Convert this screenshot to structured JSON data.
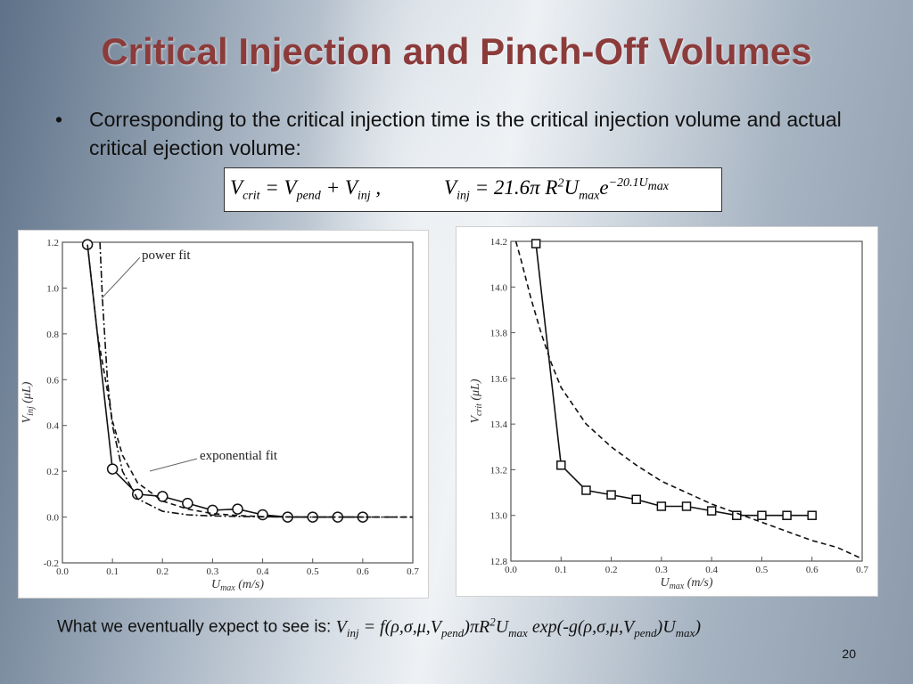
{
  "slide": {
    "title": "Critical Injection and Pinch-Off Volumes",
    "bullet": "Corresponding to the critical injection time is the critical injection volume and actual critical ejection volume:",
    "bottom_prefix": "What we eventually expect to see is:",
    "page_number": "20"
  },
  "equation": {
    "part1": "V_crit = V_pend + V_inj ,",
    "part2": "V_inj = 21.6π R²U_max e^(−20.1U_max)"
  },
  "bottom_formula": "V_inj = f(ρ,σ,μ,V_pend)πR²U_max exp(-g(ρ,σ,μ,V_pend)U_max)",
  "chart_data": [
    {
      "type": "line",
      "xlabel": "U_max (m/s)",
      "ylabel": "V_inj (μL)",
      "xlim": [
        0.0,
        0.7
      ],
      "ylim": [
        -0.2,
        1.2
      ],
      "xticks": [
        "0.0",
        "0.1",
        "0.2",
        "0.3",
        "0.4",
        "0.5",
        "0.6",
        "0.7"
      ],
      "yticks": [
        "-0.2",
        "0.0",
        "0.2",
        "0.4",
        "0.6",
        "0.8",
        "1.0",
        "1.2"
      ],
      "annotations": [
        "power fit",
        "exponential fit"
      ],
      "series": [
        {
          "style": "solid-circle-markers",
          "x": [
            0.05,
            0.1,
            0.15,
            0.2,
            0.25,
            0.3,
            0.35,
            0.4,
            0.45,
            0.5,
            0.55,
            0.6
          ],
          "y": [
            1.19,
            0.21,
            0.1,
            0.09,
            0.06,
            0.03,
            0.035,
            0.01,
            0.0,
            0.0,
            0.0,
            0.0
          ]
        },
        {
          "name": "power fit",
          "style": "dash-dot",
          "x": [
            0.075,
            0.08,
            0.09,
            0.1,
            0.12,
            0.15,
            0.2,
            0.25,
            0.3,
            0.4,
            0.5,
            0.6,
            0.7
          ],
          "y": [
            1.2,
            0.95,
            0.6,
            0.4,
            0.2,
            0.08,
            0.025,
            0.01,
            0.005,
            0.001,
            0.0,
            0.0,
            0.0
          ]
        },
        {
          "name": "exponential fit",
          "style": "dashed",
          "x": [
            0.05,
            0.07,
            0.09,
            0.1,
            0.12,
            0.15,
            0.2,
            0.25,
            0.3,
            0.35,
            0.4,
            0.5,
            0.6,
            0.7
          ],
          "y": [
            1.19,
            0.8,
            0.55,
            0.42,
            0.27,
            0.15,
            0.07,
            0.035,
            0.015,
            0.007,
            0.002,
            0.0,
            0.0,
            0.0
          ]
        }
      ]
    },
    {
      "type": "line",
      "xlabel": "U_max (m/s)",
      "ylabel": "V_crit (μL)",
      "xlim": [
        0.0,
        0.7
      ],
      "ylim": [
        12.8,
        14.2
      ],
      "xticks": [
        "0.0",
        "0.1",
        "0.2",
        "0.3",
        "0.4",
        "0.5",
        "0.6",
        "0.7"
      ],
      "yticks": [
        "12.8",
        "13.0",
        "13.2",
        "13.4",
        "13.6",
        "13.8",
        "14.0",
        "14.2"
      ],
      "series": [
        {
          "style": "solid-square-markers",
          "x": [
            0.05,
            0.1,
            0.15,
            0.2,
            0.25,
            0.3,
            0.35,
            0.4,
            0.45,
            0.5,
            0.55,
            0.6
          ],
          "y": [
            14.19,
            13.22,
            13.11,
            13.09,
            13.07,
            13.04,
            13.04,
            13.02,
            13.0,
            13.0,
            13.0,
            13.0
          ]
        },
        {
          "style": "dashed",
          "x": [
            0.01,
            0.02,
            0.04,
            0.06,
            0.08,
            0.1,
            0.15,
            0.2,
            0.25,
            0.3,
            0.35,
            0.4,
            0.45,
            0.5,
            0.55,
            0.6,
            0.65,
            0.7
          ],
          "y": [
            14.2,
            14.12,
            13.95,
            13.8,
            13.67,
            13.56,
            13.4,
            13.3,
            13.22,
            13.15,
            13.1,
            13.05,
            13.01,
            12.97,
            12.93,
            12.89,
            12.86,
            12.81
          ]
        }
      ]
    }
  ]
}
